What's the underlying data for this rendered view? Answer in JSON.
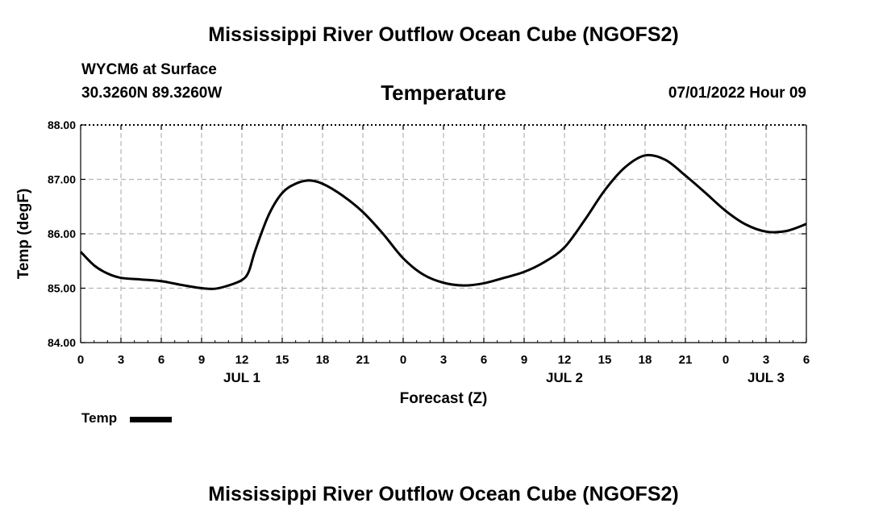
{
  "header": {
    "title": "Mississippi River Outflow Ocean Cube (NGOFS2)",
    "station": "WYCM6 at Surface",
    "coords": "30.3260N  89.3260W",
    "variable": "Temperature",
    "timestamp": "07/01/2022 Hour 09"
  },
  "footer": {
    "title": "Mississippi River Outflow Ocean Cube (NGOFS2)"
  },
  "chart_data": {
    "type": "line",
    "title": "Temperature",
    "xlabel": "Forecast (Z)",
    "ylabel": "Temp (degF)",
    "xlim": [
      0,
      54
    ],
    "ylim": [
      84,
      88
    ],
    "yticks": [
      84,
      85,
      86,
      87,
      88
    ],
    "ytick_labels": [
      "84.00",
      "85.00",
      "86.00",
      "87.00",
      "88.00"
    ],
    "xticks": [
      0,
      3,
      6,
      9,
      12,
      15,
      18,
      21,
      24,
      27,
      30,
      33,
      36,
      39,
      42,
      45,
      48,
      51,
      54
    ],
    "xtick_labels": [
      "0",
      "3",
      "6",
      "9",
      "12",
      "15",
      "18",
      "21",
      "0",
      "3",
      "6",
      "9",
      "12",
      "15",
      "18",
      "21",
      "0",
      "3",
      "6"
    ],
    "date_labels": [
      {
        "x": 12,
        "label": "JUL 1"
      },
      {
        "x": 36,
        "label": "JUL 2"
      },
      {
        "x": 51,
        "label": "JUL 3"
      }
    ],
    "grid": true,
    "series": [
      {
        "name": "Temp",
        "color": "#000000",
        "x": [
          0,
          1,
          2,
          3,
          4.5,
          6,
          7.5,
          9,
          10,
          11,
          12,
          12.5,
          13,
          14,
          15,
          16,
          17,
          18,
          19.5,
          21,
          22.5,
          24,
          25.5,
          27,
          28.5,
          30,
          31.5,
          33,
          34.5,
          36,
          37.5,
          39,
          40.5,
          42,
          43.5,
          45,
          46.5,
          48,
          49.5,
          51,
          52.5,
          54
        ],
        "values": [
          85.67,
          85.42,
          85.27,
          85.19,
          85.16,
          85.13,
          85.06,
          85.0,
          84.99,
          85.05,
          85.15,
          85.3,
          85.7,
          86.35,
          86.75,
          86.92,
          86.98,
          86.92,
          86.7,
          86.4,
          86.0,
          85.55,
          85.25,
          85.1,
          85.05,
          85.09,
          85.19,
          85.3,
          85.48,
          85.75,
          86.25,
          86.8,
          87.22,
          87.44,
          87.36,
          87.07,
          86.75,
          86.42,
          86.17,
          86.04,
          86.05,
          86.18
        ]
      }
    ],
    "legend": [
      {
        "label": "Temp",
        "position": "bottom-left"
      }
    ]
  }
}
